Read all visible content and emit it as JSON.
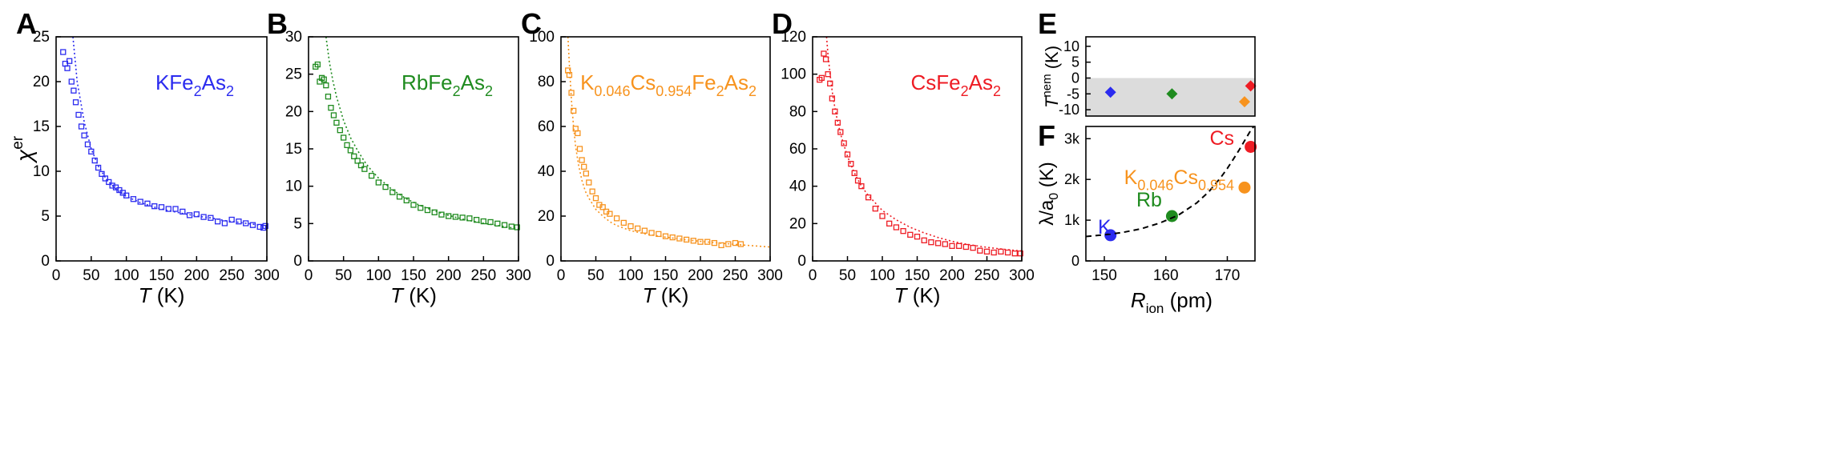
{
  "figure": {
    "panels": [
      {
        "letter": "A",
        "color": "#2b2bef",
        "formula": [
          "KFe",
          "2",
          "As",
          "2"
        ]
      },
      {
        "letter": "B",
        "color": "#1f8b1f",
        "formula": [
          "RbFe",
          "2",
          "As",
          "2"
        ]
      },
      {
        "letter": "C",
        "color": "#f7931e",
        "formula": [
          "K",
          "0.046",
          "Cs",
          "0.954",
          "Fe",
          "2",
          "As",
          "2"
        ]
      },
      {
        "letter": "D",
        "color": "#ee1c24",
        "formula": [
          "CsFe",
          "2",
          "As",
          "2"
        ]
      },
      {
        "letter": "E"
      },
      {
        "letter": "F"
      }
    ],
    "x_label_T": [
      "T",
      " (K)"
    ],
    "y_label_chi": [
      "χ",
      "er"
    ],
    "y_label_Tnem": [
      "T",
      "nem",
      " (K)"
    ],
    "y_label_lambda": [
      "λ/a",
      "0",
      " (K)"
    ],
    "x_label_Rion": [
      "R",
      "ion",
      " (pm)"
    ]
  },
  "chart_data": [
    {
      "type": "scatter",
      "panel": "A",
      "title": "KFe2As2",
      "xlabel": "T (K)",
      "ylabel": "χ^er",
      "xlim": [
        0,
        300
      ],
      "ylim": [
        0,
        25
      ],
      "xticks": [
        0,
        50,
        100,
        150,
        200,
        250,
        300
      ],
      "yticks": [
        0,
        5,
        10,
        15,
        20,
        25
      ],
      "series": [
        {
          "name": "data",
          "marker": "open-square",
          "color": "#2b2bef",
          "x": [
            10,
            13,
            16,
            19,
            22,
            25,
            28,
            32,
            36,
            40,
            45,
            50,
            55,
            60,
            65,
            70,
            75,
            80,
            85,
            90,
            95,
            100,
            110,
            120,
            130,
            140,
            150,
            160,
            170,
            180,
            190,
            200,
            210,
            220,
            230,
            240,
            250,
            260,
            270,
            280,
            290,
            295,
            298
          ],
          "y": [
            23.3,
            22.0,
            21.5,
            22.3,
            20.0,
            19.0,
            17.7,
            16.3,
            15.0,
            14.0,
            13.0,
            12.2,
            11.2,
            10.4,
            9.7,
            9.2,
            8.8,
            8.4,
            8.2,
            7.9,
            7.6,
            7.3,
            6.9,
            6.6,
            6.4,
            6.1,
            6.0,
            5.8,
            5.8,
            5.5,
            5.1,
            5.2,
            4.9,
            4.8,
            4.4,
            4.2,
            4.6,
            4.4,
            4.2,
            4.0,
            3.8,
            3.7,
            3.9
          ]
        },
        {
          "name": "fit",
          "style": "dotted-line",
          "color": "#2b2bef",
          "x": [
            24,
            30,
            40,
            50,
            60,
            70,
            80,
            90,
            100,
            120,
            140,
            160,
            180,
            200,
            220,
            240,
            260,
            280,
            300
          ],
          "y": [
            25.0,
            20.0,
            15.5,
            12.5,
            10.6,
            9.3,
            8.4,
            7.7,
            7.2,
            6.5,
            6.0,
            5.6,
            5.3,
            5.0,
            4.8,
            4.5,
            4.3,
            4.1,
            3.9
          ]
        }
      ]
    },
    {
      "type": "scatter",
      "panel": "B",
      "title": "RbFe2As2",
      "xlabel": "T (K)",
      "ylabel": "",
      "xlim": [
        0,
        300
      ],
      "ylim": [
        0,
        30
      ],
      "xticks": [
        0,
        50,
        100,
        150,
        200,
        250,
        300
      ],
      "yticks": [
        0,
        5,
        10,
        15,
        20,
        25,
        30
      ],
      "series": [
        {
          "name": "data",
          "marker": "open-square",
          "color": "#1f8b1f",
          "x": [
            10,
            13,
            16,
            19,
            22,
            25,
            28,
            32,
            36,
            40,
            45,
            50,
            55,
            60,
            65,
            70,
            75,
            80,
            90,
            100,
            110,
            120,
            130,
            140,
            150,
            160,
            170,
            180,
            190,
            200,
            210,
            220,
            230,
            240,
            250,
            260,
            270,
            280,
            290,
            298
          ],
          "y": [
            26.0,
            26.3,
            24.0,
            24.5,
            24.3,
            23.5,
            22.0,
            20.5,
            19.5,
            18.5,
            17.5,
            16.5,
            15.5,
            14.8,
            14.0,
            13.4,
            12.8,
            12.3,
            11.4,
            10.5,
            9.9,
            9.2,
            8.6,
            8.1,
            7.5,
            7.1,
            6.8,
            6.5,
            6.2,
            6.0,
            5.9,
            5.8,
            5.7,
            5.5,
            5.3,
            5.2,
            5.0,
            4.8,
            4.6,
            4.5
          ]
        },
        {
          "name": "fit",
          "style": "dotted-line",
          "color": "#1f8b1f",
          "x": [
            25,
            30,
            35,
            40,
            50,
            60,
            70,
            80,
            90,
            100,
            120,
            140,
            160,
            180,
            200,
            220,
            240,
            260,
            280,
            300
          ],
          "y": [
            30.0,
            26.5,
            24.0,
            22.0,
            18.8,
            16.5,
            14.8,
            13.3,
            12.1,
            11.1,
            9.5,
            8.3,
            7.4,
            6.7,
            6.1,
            5.6,
            5.2,
            4.9,
            4.6,
            4.3
          ]
        }
      ]
    },
    {
      "type": "scatter",
      "panel": "C",
      "title": "K0.046Cs0.954Fe2As2",
      "xlabel": "T (K)",
      "ylabel": "",
      "xlim": [
        0,
        300
      ],
      "ylim": [
        0,
        100
      ],
      "xticks": [
        0,
        50,
        100,
        150,
        200,
        250,
        300
      ],
      "yticks": [
        0,
        20,
        40,
        60,
        80,
        100
      ],
      "series": [
        {
          "name": "data",
          "marker": "open-square",
          "color": "#f7931e",
          "x": [
            10,
            12,
            15,
            18,
            21,
            24,
            27,
            30,
            33,
            36,
            40,
            45,
            50,
            55,
            60,
            65,
            70,
            80,
            90,
            100,
            110,
            120,
            130,
            140,
            150,
            160,
            170,
            180,
            190,
            200,
            210,
            220,
            230,
            240,
            250,
            258
          ],
          "y": [
            85,
            83,
            75,
            67,
            59,
            57,
            50,
            45,
            42,
            39,
            35,
            31,
            28,
            25,
            24,
            22,
            21,
            19,
            17,
            15.5,
            14.5,
            13.5,
            12.5,
            12,
            11,
            10.5,
            10,
            9.5,
            9,
            8.5,
            8.5,
            8,
            7,
            7.5,
            8,
            7.5
          ]
        },
        {
          "name": "fit",
          "style": "dotted-line",
          "color": "#f7931e",
          "x": [
            10,
            12,
            15,
            18,
            21,
            25,
            30,
            35,
            40,
            50,
            60,
            70,
            80,
            100,
            120,
            150,
            180,
            200,
            230,
            260,
            300
          ],
          "y": [
            100,
            88,
            72,
            60,
            51,
            43,
            36,
            31,
            28,
            23,
            20,
            17.5,
            15.8,
            13.5,
            12.1,
            10.6,
            9.4,
            8.7,
            7.9,
            7.1,
            6.2
          ]
        }
      ]
    },
    {
      "type": "scatter",
      "panel": "D",
      "title": "CsFe2As2",
      "xlabel": "T (K)",
      "ylabel": "",
      "xlim": [
        0,
        300
      ],
      "ylim": [
        0,
        120
      ],
      "xticks": [
        0,
        50,
        100,
        150,
        200,
        250,
        300
      ],
      "yticks": [
        0,
        20,
        40,
        60,
        80,
        100,
        120
      ],
      "series": [
        {
          "name": "data",
          "marker": "open-square",
          "color": "#ee1c24",
          "x": [
            10,
            13,
            16,
            19,
            22,
            25,
            28,
            32,
            36,
            40,
            45,
            50,
            55,
            60,
            65,
            70,
            80,
            90,
            100,
            110,
            120,
            130,
            140,
            150,
            160,
            170,
            180,
            190,
            200,
            210,
            220,
            230,
            240,
            250,
            260,
            270,
            280,
            290,
            298
          ],
          "y": [
            97,
            98,
            111,
            108,
            100,
            95,
            87,
            80,
            74,
            69,
            63,
            57,
            52,
            47,
            43,
            40,
            34,
            28,
            24,
            20,
            18,
            16,
            14,
            13,
            11,
            10,
            9.5,
            9,
            8,
            8,
            7.5,
            7,
            5.5,
            5,
            4.5,
            5,
            4.5,
            4,
            4
          ]
        },
        {
          "name": "fit",
          "style": "dotted-line",
          "color": "#ee1c24",
          "x": [
            20,
            22,
            25,
            28,
            30,
            35,
            40,
            50,
            60,
            70,
            80,
            100,
            120,
            140,
            160,
            180,
            200,
            220,
            240,
            260,
            280,
            300
          ],
          "y": [
            120,
            111,
            100,
            91,
            86,
            76,
            68,
            56,
            47,
            40,
            35,
            27,
            22,
            18,
            15,
            12.5,
            10.5,
            9,
            7.8,
            6.8,
            6,
            5.3
          ]
        }
      ]
    },
    {
      "type": "scatter",
      "panel": "E",
      "xlabel": "",
      "ylabel": "T^nem (K)",
      "xlim": [
        147,
        174.5
      ],
      "ylim": [
        -12,
        13
      ],
      "yticks": [
        -10,
        -5,
        0,
        5,
        10
      ],
      "shaded_region": {
        "y_from": -12,
        "y_to": 0,
        "color": "#dcdcdc"
      },
      "series": [
        {
          "name": "K",
          "marker": "diamond",
          "color": "#2b2bef",
          "x": [
            151
          ],
          "y": [
            -4.5
          ]
        },
        {
          "name": "Rb",
          "marker": "diamond",
          "color": "#1f8b1f",
          "x": [
            161
          ],
          "y": [
            -5.0
          ]
        },
        {
          "name": "K0.046Cs0.954",
          "marker": "diamond",
          "color": "#f7931e",
          "x": [
            172.8
          ],
          "y": [
            -7.5
          ]
        },
        {
          "name": "Cs",
          "marker": "diamond",
          "color": "#ee1c24",
          "x": [
            173.8
          ],
          "y": [
            -2.5
          ]
        }
      ]
    },
    {
      "type": "scatter",
      "panel": "F",
      "xlabel": "R_ion (pm)",
      "ylabel": "λ/a0 (K)",
      "xlim": [
        147,
        174.5
      ],
      "ylim": [
        0,
        3300
      ],
      "xticks": [
        150,
        160,
        170
      ],
      "yticks": [
        0,
        1000,
        2000,
        3000
      ],
      "ytick_labels": [
        "0",
        "1k",
        "2k",
        "3k"
      ],
      "series": [
        {
          "name": "K",
          "marker": "circle",
          "color": "#2b2bef",
          "x": [
            151
          ],
          "y": [
            630
          ]
        },
        {
          "name": "Rb",
          "marker": "circle",
          "color": "#1f8b1f",
          "x": [
            161
          ],
          "y": [
            1100
          ]
        },
        {
          "name": "K0.046Cs0.954",
          "marker": "circle",
          "color": "#f7931e",
          "x": [
            172.8
          ],
          "y": [
            1800
          ]
        },
        {
          "name": "Cs",
          "marker": "circle",
          "color": "#ee1c24",
          "x": [
            173.8
          ],
          "y": [
            2800
          ]
        },
        {
          "name": "fit",
          "style": "dashed-line",
          "color": "#000000",
          "x": [
            147,
            150,
            153,
            156,
            159,
            162,
            165,
            167,
            169,
            170,
            171,
            172,
            173,
            173.8,
            174.3
          ],
          "y": [
            600,
            640,
            700,
            790,
            930,
            1120,
            1420,
            1700,
            2060,
            2270,
            2500,
            2740,
            3000,
            3200,
            3300
          ]
        }
      ],
      "annotations": [
        {
          "name": "label-k",
          "text": "K",
          "color": "#2b2bef"
        },
        {
          "name": "label-rb",
          "text": "Rb",
          "color": "#1f8b1f"
        },
        {
          "name": "label-kcs",
          "text": [
            "K",
            "0.046",
            "Cs",
            "0.954"
          ],
          "color": "#f7931e"
        },
        {
          "name": "label-cs",
          "text": "Cs",
          "color": "#ee1c24"
        }
      ]
    }
  ]
}
